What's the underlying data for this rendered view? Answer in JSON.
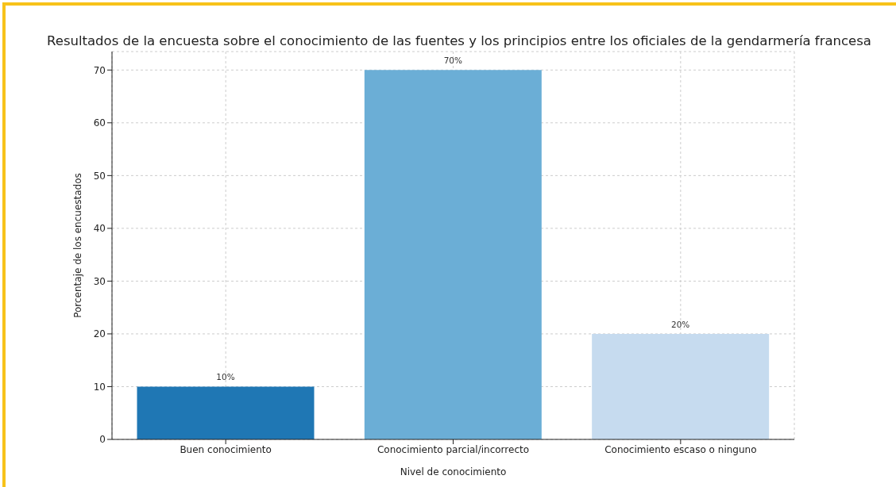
{
  "chart_data": {
    "type": "bar",
    "title": "Resultados de la encuesta sobre el conocimiento de las fuentes y los principios entre los oficiales de la gendarmería francesa",
    "xlabel": "Nivel de conocimiento",
    "ylabel": "Porcentaje de los encuestados",
    "categories": [
      "Buen conocimiento",
      "Conocimiento parcial/incorrecto",
      "Conocimiento escaso o ninguno"
    ],
    "values": [
      10,
      70,
      20
    ],
    "colors": [
      "#1f77b4",
      "#6baed6",
      "#c6dbef"
    ],
    "value_labels": [
      "10%",
      "70%",
      "20%"
    ],
    "ylim": [
      0,
      73.5
    ],
    "yticks": [
      0,
      10,
      20,
      30,
      40,
      50,
      60,
      70
    ],
    "grid": true
  }
}
